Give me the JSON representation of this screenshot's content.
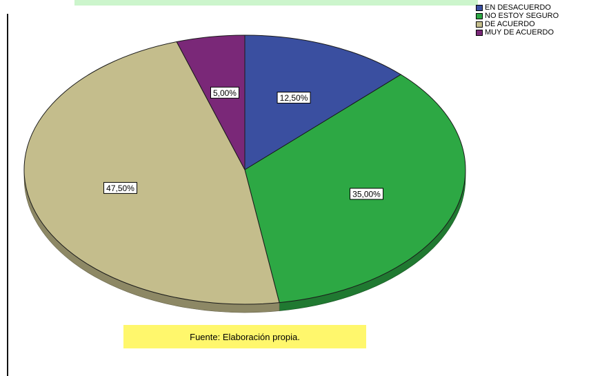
{
  "chart_data": {
    "type": "pie",
    "slices": [
      {
        "label": "EN DESACUERDO",
        "value": 12.5,
        "display": "12,50%",
        "color": "#3a4fa0"
      },
      {
        "label": "NO ESTOY SEGURO",
        "value": 35.0,
        "display": "35,00%",
        "color": "#2da844"
      },
      {
        "label": "DE ACUERDO",
        "value": 47.5,
        "display": "47,50%",
        "color": "#c4bd8c"
      },
      {
        "label": "MUY DE ACUERDO",
        "value": 5.0,
        "display": "5,00%",
        "color": "#7a2878"
      }
    ],
    "legend_position": "top-right"
  },
  "source_note": "Fuente: Elaboración propia."
}
